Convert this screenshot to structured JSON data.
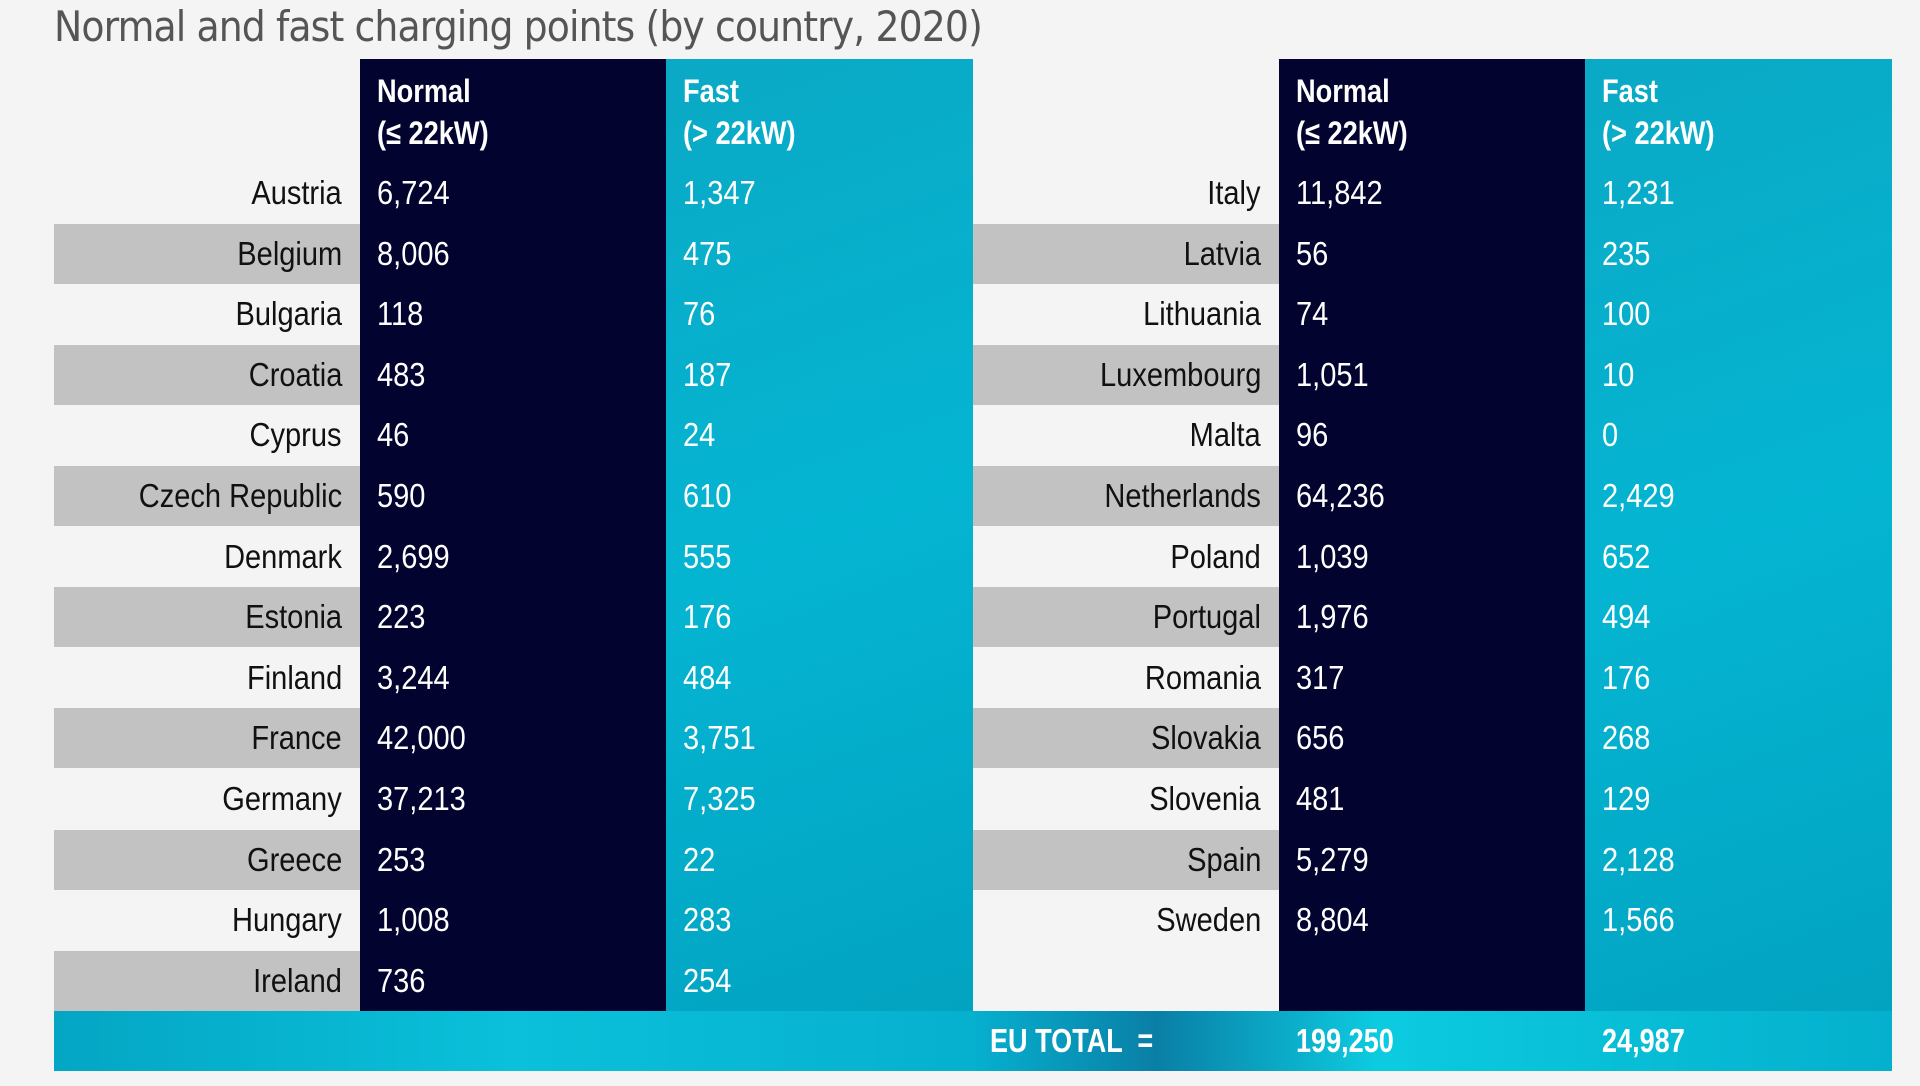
{
  "title": "Normal and fast charging points (by country, 2020)",
  "headers": {
    "normal": [
      "Normal",
      "(≤ 22kW)"
    ],
    "fast": [
      "Fast",
      "(> 22kW)"
    ]
  },
  "left": [
    {
      "country": "Austria",
      "normal": "6,724",
      "fast": "1,347"
    },
    {
      "country": "Belgium",
      "normal": "8,006",
      "fast": "475"
    },
    {
      "country": "Bulgaria",
      "normal": "118",
      "fast": "76"
    },
    {
      "country": "Croatia",
      "normal": "483",
      "fast": "187"
    },
    {
      "country": "Cyprus",
      "normal": "46",
      "fast": "24"
    },
    {
      "country": "Czech Republic",
      "normal": "590",
      "fast": "610"
    },
    {
      "country": "Denmark",
      "normal": "2,699",
      "fast": "555"
    },
    {
      "country": "Estonia",
      "normal": "223",
      "fast": "176"
    },
    {
      "country": "Finland",
      "normal": "3,244",
      "fast": "484"
    },
    {
      "country": "France",
      "normal": "42,000",
      "fast": "3,751"
    },
    {
      "country": "Germany",
      "normal": "37,213",
      "fast": "7,325"
    },
    {
      "country": "Greece",
      "normal": "253",
      "fast": "22"
    },
    {
      "country": "Hungary",
      "normal": "1,008",
      "fast": "283"
    },
    {
      "country": "Ireland",
      "normal": "736",
      "fast": "254"
    }
  ],
  "right": [
    {
      "country": "Italy",
      "normal": "11,842",
      "fast": "1,231"
    },
    {
      "country": "Latvia",
      "normal": "56",
      "fast": "235"
    },
    {
      "country": "Lithuania",
      "normal": "74",
      "fast": "100"
    },
    {
      "country": "Luxembourg",
      "normal": "1,051",
      "fast": "10"
    },
    {
      "country": "Malta",
      "normal": "96",
      "fast": "0"
    },
    {
      "country": "Netherlands",
      "normal": "64,236",
      "fast": "2,429"
    },
    {
      "country": "Poland",
      "normal": "1,039",
      "fast": "652"
    },
    {
      "country": "Portugal",
      "normal": "1,976",
      "fast": "494"
    },
    {
      "country": "Romania",
      "normal": "317",
      "fast": "176"
    },
    {
      "country": "Slovakia",
      "normal": "656",
      "fast": "268"
    },
    {
      "country": "Slovenia",
      "normal": "481",
      "fast": "129"
    },
    {
      "country": "Spain",
      "normal": "5,279",
      "fast": "2,128"
    },
    {
      "country": "Sweden",
      "normal": "8,804",
      "fast": "1,566"
    }
  ],
  "total": {
    "label": "EU TOTAL  =",
    "normal": "199,250",
    "fast": "24,987"
  },
  "colors": {
    "normal": "#02032e",
    "fast": "#04b5d2",
    "stripe": "#c2c2c2"
  }
}
